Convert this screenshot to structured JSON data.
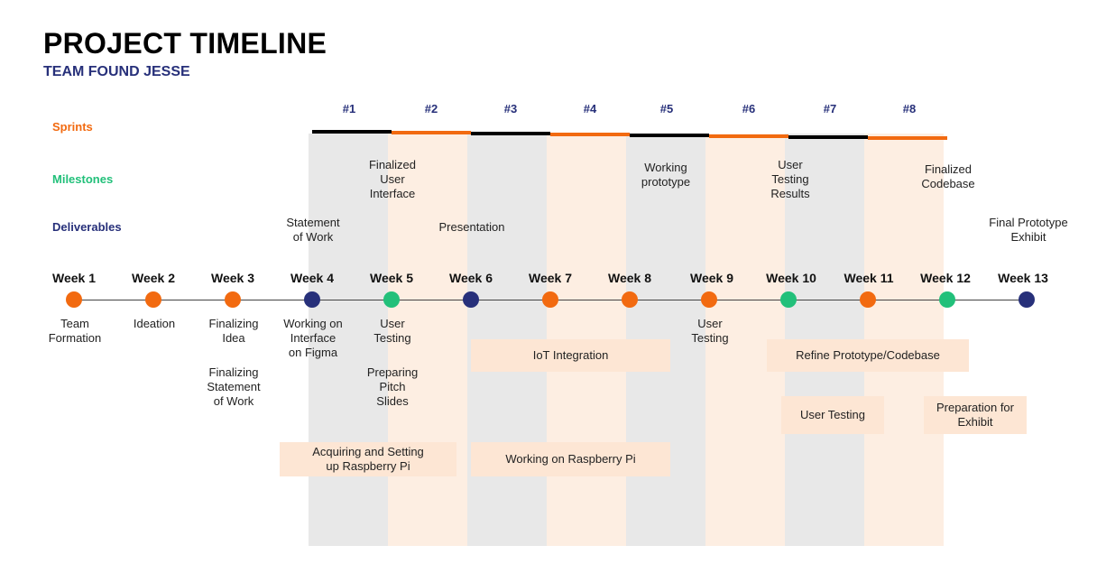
{
  "header": {
    "title": "PROJECT TIMELINE",
    "subtitle": "TEAM FOUND JESSE"
  },
  "row_labels": {
    "sprints": "Sprints",
    "milestones": "Milestones",
    "deliverables": "Deliverables"
  },
  "colors": {
    "orange": "#f26a10",
    "green": "#22c07a",
    "navy": "#27307a",
    "gray_band": "#e8e8e8",
    "peach_band": "#fdeee2",
    "box": "#fde6d4"
  },
  "sprints": [
    "#1",
    "#2",
    "#3",
    "#4",
    "#5",
    "#6",
    "#7",
    "#8"
  ],
  "milestones": [
    {
      "text": "Finalized\nUser\nInterface",
      "week": "Week 5"
    },
    {
      "text": "Working\nprototype",
      "week": "Week 9"
    },
    {
      "text": "User\nTesting\nResults",
      "week": "Week 10"
    },
    {
      "text": "Finalized\nCodebase",
      "week": "Week 12"
    }
  ],
  "deliverables": [
    {
      "text": "Statement\nof Work",
      "week": "Week 4"
    },
    {
      "text": "Presentation",
      "week": "Week 6"
    },
    {
      "text": "Final Prototype\nExhibit",
      "week": "Week 13"
    }
  ],
  "weeks": [
    {
      "label": "Week 1",
      "status": "orange",
      "tasks": [
        "Team\nFormation"
      ]
    },
    {
      "label": "Week 2",
      "status": "orange",
      "tasks": [
        "Ideation"
      ]
    },
    {
      "label": "Week 3",
      "status": "orange",
      "tasks": [
        "Finalizing\nIdea",
        "Finalizing\nStatement\nof Work"
      ]
    },
    {
      "label": "Week 4",
      "status": "navy",
      "tasks": [
        "Working on\nInterface\non Figma"
      ]
    },
    {
      "label": "Week 5",
      "status": "green",
      "tasks": [
        "User\nTesting",
        "Preparing\nPitch\nSlides"
      ]
    },
    {
      "label": "Week 6",
      "status": "navy",
      "tasks": []
    },
    {
      "label": "Week 7",
      "status": "orange",
      "tasks": []
    },
    {
      "label": "Week 8",
      "status": "orange",
      "tasks": []
    },
    {
      "label": "Week 9",
      "status": "orange",
      "tasks": [
        "User\nTesting"
      ]
    },
    {
      "label": "Week 10",
      "status": "green",
      "tasks": []
    },
    {
      "label": "Week 11",
      "status": "orange",
      "tasks": []
    },
    {
      "label": "Week 12",
      "status": "green",
      "tasks": []
    },
    {
      "label": "Week 13",
      "status": "navy",
      "tasks": []
    }
  ],
  "activity_boxes": [
    "IoT Integration",
    "Refine Prototype/Codebase",
    "User Testing",
    "Preparation for\nExhibit",
    "Acquiring and Setting\nup Raspberry Pi",
    "Working on Raspberry Pi"
  ]
}
